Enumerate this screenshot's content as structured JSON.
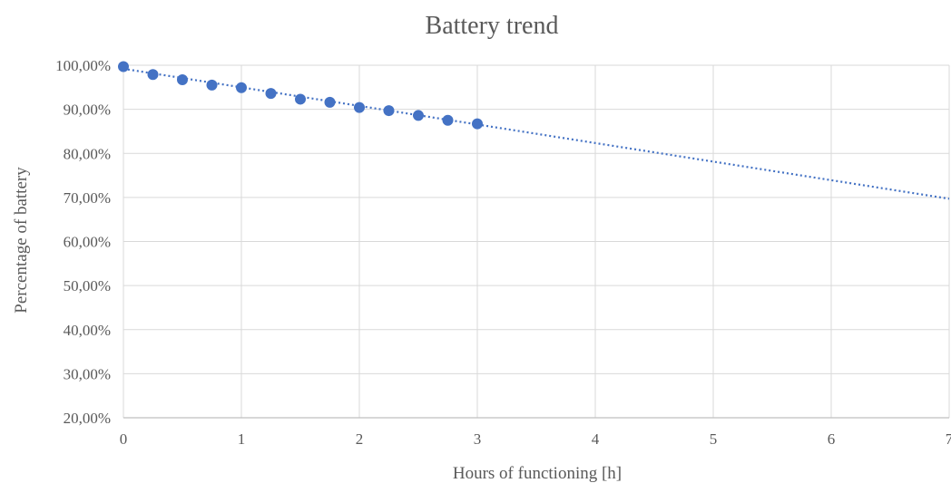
{
  "chart_data": {
    "type": "scatter",
    "title": "Battery trend",
    "xlabel": "Hours of functioning [h]",
    "ylabel": "Percentage of battery",
    "xlim": [
      0,
      7
    ],
    "ylim": [
      20,
      100
    ],
    "x_ticks": [
      0,
      1,
      2,
      3,
      4,
      5,
      6,
      7
    ],
    "x_tick_labels": [
      "0",
      "1",
      "2",
      "3",
      "4",
      "5",
      "6",
      "7"
    ],
    "y_ticks": [
      20,
      30,
      40,
      50,
      60,
      70,
      80,
      90,
      100
    ],
    "y_tick_labels": [
      "20,00%",
      "30,00%",
      "40,00%",
      "50,00%",
      "60,00%",
      "70,00%",
      "80,00%",
      "90,00%",
      "100,00%"
    ],
    "grid": true,
    "legend": "none",
    "series": [
      {
        "x": [
          0,
          0.25,
          0.5,
          0.75,
          1,
          1.25,
          1.5,
          1.75,
          2,
          2.25,
          2.5,
          2.75,
          3
        ],
        "y": [
          99.7,
          97.9,
          96.7,
          95.5,
          94.9,
          93.6,
          92.3,
          91.6,
          90.4,
          89.7,
          88.6,
          87.5,
          86.7
        ],
        "color": "#4472c4",
        "marker": "circle"
      }
    ],
    "trendline": {
      "type": "linear",
      "style": "dotted",
      "color": "#4472c4",
      "x": [
        0,
        7
      ],
      "y": [
        99.2,
        69.7
      ]
    }
  }
}
